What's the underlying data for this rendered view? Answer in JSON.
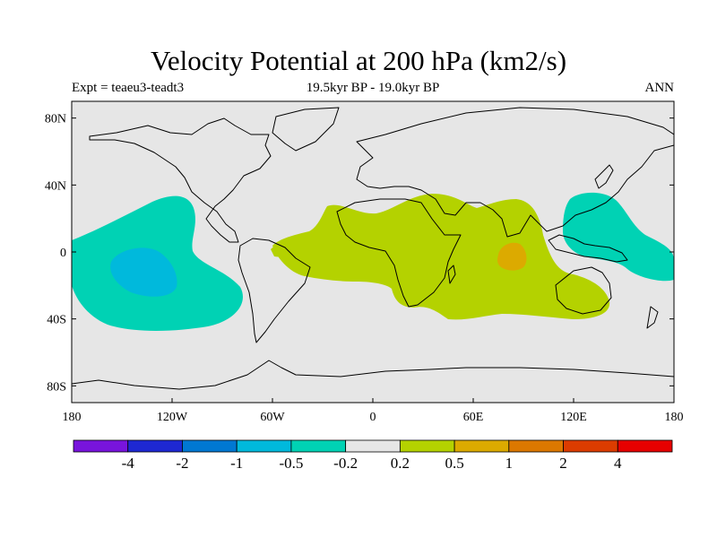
{
  "title": "Velocity Potential at 200 hPa (km2/s)",
  "subtitle": "19.5kyr BP - 19.0kyr BP",
  "experiment": "Expt = teaeu3-teadt3",
  "season": "ANN",
  "map": {
    "projection": "cylindrical equidistant",
    "lon_range": [
      -180,
      180
    ],
    "lat_range": [
      -90,
      90
    ],
    "ocean_land_fill": "#e6e6e6",
    "coastline_color": "#000000",
    "lat_ticks": [
      {
        "label": "80N",
        "lat": 80
      },
      {
        "label": "40N",
        "lat": 40
      },
      {
        "label": "0",
        "lat": 0
      },
      {
        "label": "40S",
        "lat": -40
      },
      {
        "label": "80S",
        "lat": -80
      }
    ],
    "lon_ticks": [
      {
        "label": "180",
        "lon": -180
      },
      {
        "label": "120W",
        "lon": -120
      },
      {
        "label": "60W",
        "lon": -60
      },
      {
        "label": "0",
        "lon": 0
      },
      {
        "label": "60E",
        "lon": 60
      },
      {
        "label": "120E",
        "lon": 120
      },
      {
        "label": "180",
        "lon": 180
      }
    ]
  },
  "contour_regions": [
    {
      "name": "eastern-pacific-negative",
      "class": "-0.5 to -0.2",
      "color": "#00d2b4"
    },
    {
      "name": "eastern-pacific-core",
      "class": "-1 to -0.5",
      "color": "#00b9dc"
    },
    {
      "name": "western-pacific-negative",
      "class": "-0.5 to -0.2",
      "color": "#00d2b4"
    },
    {
      "name": "indian-ocean-positive",
      "class": "0.2 to 0.5",
      "color": "#b4d200"
    },
    {
      "name": "indian-ocean-peak",
      "class": "0.5 to 1",
      "color": "#dcaa00"
    },
    {
      "name": "atlantic-positive-patch",
      "class": "0.2 to 0.5",
      "color": "#b4d200"
    }
  ],
  "colorbar": {
    "colors": [
      "#7814dc",
      "#1e28d2",
      "#0078d2",
      "#00b9dc",
      "#00d2b4",
      "#e6e6e6",
      "#b4d200",
      "#dcaa00",
      "#dc7800",
      "#dc3c00",
      "#e60000"
    ],
    "labels": [
      "-4",
      "-2",
      "-1",
      "-0.5",
      "-0.2",
      "0.2",
      "0.5",
      "1",
      "2",
      "4"
    ]
  }
}
